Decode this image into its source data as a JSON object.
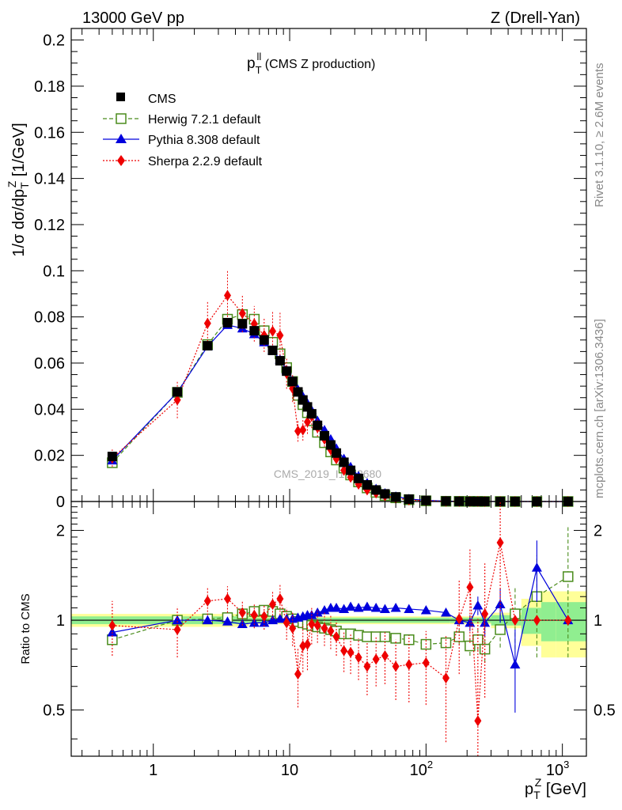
{
  "header": {
    "left": "13000 GeV pp",
    "right": "Z (Drell-Yan)"
  },
  "side_labels": {
    "rivet": "Rivet 3.1.10, ≥ 2.6M events",
    "mcplots": "mcplots.cern.ch [arXiv:1306.3436]"
  },
  "watermark": "CMS_2019_I1753680",
  "colors": {
    "cms": "#000000",
    "herwig": "#4a8c1c",
    "pythia": "#0000dd",
    "sherpa": "#ee0000",
    "band_inner": "#90ee90",
    "band_outer": "#ffff99"
  },
  "chart_data": [
    {
      "type": "scatter",
      "title_main": "p",
      "title_sup": "ll",
      "title_sub": "T",
      "title_rest": " (CMS Z production)",
      "ylabel_parts": {
        "pre": "1/σ dσ/dp",
        "sub": "T",
        "sup": "Z",
        "post": " [1/GeV]"
      },
      "x_scale": "log",
      "xlim": [
        0.25,
        1500
      ],
      "ylim": [
        0,
        0.205
      ],
      "yticks": [
        "0",
        "0.02",
        "0.04",
        "0.06",
        "0.08",
        "0.1",
        "0.12",
        "0.14",
        "0.16",
        "0.18",
        "0.2"
      ],
      "legend": [
        "CMS",
        "Herwig 7.2.1 default",
        "Pythia 8.308 default",
        "Sherpa 2.2.9 default"
      ],
      "legend_position": "top-left",
      "x": [
        0.5,
        1.5,
        2.5,
        3.5,
        4.5,
        5.5,
        6.5,
        7.5,
        8.5,
        9.5,
        10.5,
        11.5,
        12.5,
        13.5,
        14.5,
        16,
        18,
        20,
        22,
        25,
        28,
        32,
        37,
        43,
        50,
        60,
        75,
        100,
        140,
        175,
        210,
        240,
        270,
        350,
        450,
        650,
        1100
      ],
      "series": [
        {
          "name": "CMS",
          "values": [
            0.0195,
            0.0475,
            0.0675,
            0.0775,
            0.077,
            0.074,
            0.07,
            0.0655,
            0.061,
            0.0565,
            0.052,
            0.0475,
            0.044,
            0.041,
            0.038,
            0.033,
            0.0285,
            0.0245,
            0.021,
            0.017,
            0.0135,
            0.01,
            0.0072,
            0.005,
            0.0033,
            0.002,
            0.001,
            0.00045,
            0.00018,
            9e-05,
            6e-05,
            4e-05,
            3e-05,
            1e-05,
            6e-06,
            2e-06,
            5e-07
          ]
        },
        {
          "name": "Herwig 7.2.1 default",
          "values": [
            0.0168,
            0.0473,
            0.068,
            0.079,
            0.081,
            0.079,
            0.074,
            0.069,
            0.064,
            0.058,
            0.052,
            0.046,
            0.042,
            0.0385,
            0.035,
            0.03,
            0.0255,
            0.0215,
            0.018,
            0.0145,
            0.0115,
            0.0085,
            0.0059,
            0.004,
            0.0026,
            0.0016,
            0.0008,
            0.0003,
            0.0001,
            7e-05,
            5e-05,
            4e-05,
            3e-05,
            1e-05,
            6e-06,
            2e-06,
            5e-07
          ]
        },
        {
          "name": "Pythia 8.308 default",
          "values": [
            0.0178,
            0.0473,
            0.0672,
            0.0765,
            0.075,
            0.0725,
            0.069,
            0.0655,
            0.0615,
            0.057,
            0.0525,
            0.0485,
            0.0455,
            0.0425,
            0.0395,
            0.035,
            0.031,
            0.027,
            0.023,
            0.0185,
            0.015,
            0.011,
            0.008,
            0.0055,
            0.0036,
            0.0022,
            0.0011,
            0.0005,
            0.0002,
            0.0001,
            6e-05,
            4e-05,
            3e-05,
            1e-05,
            6e-06,
            2e-06,
            5e-07
          ]
        },
        {
          "name": "Sherpa 2.2.9 default",
          "values": [
            0.0188,
            0.044,
            0.0772,
            0.0893,
            0.0815,
            0.077,
            0.072,
            0.0738,
            0.072,
            0.0555,
            0.049,
            0.0305,
            0.031,
            0.0345,
            0.037,
            0.032,
            0.027,
            0.0225,
            0.0185,
            0.0135,
            0.0105,
            0.0075,
            0.005,
            0.0037,
            0.0025,
            0.0014,
            0.0007,
            0.0003,
            0.0001,
            6e-05,
            4e-05,
            3e-05,
            2e-05,
            1e-05,
            5e-06,
            2e-06,
            5e-07
          ]
        }
      ]
    },
    {
      "type": "scatter",
      "ylabel": "Ratio to CMS",
      "xlabel_parts": {
        "pre": "p",
        "sub": "T",
        "sup": "Z",
        "post": " [GeV]"
      },
      "x_scale": "log",
      "y_scale": "log",
      "xlim": [
        0.25,
        1500
      ],
      "ylim": [
        0.35,
        2.5
      ],
      "xticks": [
        {
          "value": 1,
          "base": "1",
          "exp": ""
        },
        {
          "value": 10,
          "base": "10",
          "exp": ""
        },
        {
          "value": 100,
          "base": "10",
          "exp": "2"
        },
        {
          "value": 1000,
          "base": "10",
          "exp": "3"
        }
      ],
      "yticks": [
        "0.5",
        "1",
        "2"
      ],
      "reference_line": 1,
      "x": [
        0.5,
        1.5,
        2.5,
        3.5,
        4.5,
        5.5,
        6.5,
        7.5,
        8.5,
        9.5,
        10.5,
        11.5,
        12.5,
        13.5,
        14.5,
        16,
        18,
        20,
        22,
        25,
        28,
        32,
        37,
        43,
        50,
        60,
        75,
        100,
        140,
        175,
        210,
        240,
        270,
        350,
        450,
        650,
        1100
      ],
      "band": {
        "x_edges": [
          0.25,
          5,
          10,
          20,
          50,
          150,
          300,
          500,
          700,
          900,
          1500
        ],
        "inner": [
          0.03,
          0.02,
          0.02,
          0.02,
          0.02,
          0.02,
          0.04,
          0.1,
          0.15,
          0.15
        ],
        "outer": [
          0.05,
          0.03,
          0.03,
          0.03,
          0.03,
          0.03,
          0.06,
          0.18,
          0.25,
          0.25
        ]
      },
      "series": [
        {
          "name": "Herwig 7.2.1 default",
          "values": [
            0.86,
            1.0,
            1.01,
            1.02,
            1.05,
            1.07,
            1.08,
            1.07,
            1.05,
            1.03,
            1.01,
            0.99,
            0.98,
            0.97,
            0.96,
            0.95,
            0.94,
            0.93,
            0.92,
            0.9,
            0.9,
            0.89,
            0.88,
            0.88,
            0.88,
            0.87,
            0.86,
            0.83,
            0.84,
            0.88,
            0.82,
            0.86,
            0.8,
            0.93,
            1.05,
            1.2,
            1.4
          ],
          "err": [
            0.02,
            0.01,
            0.01,
            0.01,
            0.01,
            0.01,
            0.01,
            0.01,
            0.01,
            0.01,
            0.01,
            0.01,
            0.01,
            0.01,
            0.01,
            0.01,
            0.01,
            0.01,
            0.01,
            0.01,
            0.01,
            0.01,
            0.01,
            0.01,
            0.01,
            0.01,
            0.01,
            0.02,
            0.03,
            0.05,
            0.06,
            0.07,
            0.08,
            0.12,
            0.25,
            0.45,
            0.65
          ]
        },
        {
          "name": "Pythia 8.308 default",
          "values": [
            0.91,
            1.0,
            1.0,
            0.99,
            0.97,
            0.98,
            0.98,
            1.0,
            1.01,
            1.01,
            1.01,
            1.02,
            1.03,
            1.04,
            1.04,
            1.06,
            1.08,
            1.1,
            1.1,
            1.09,
            1.11,
            1.1,
            1.11,
            1.1,
            1.09,
            1.1,
            1.09,
            1.08,
            1.06,
            1.0,
            0.98,
            1.12,
            0.98,
            1.13,
            0.71,
            1.5,
            1.0
          ],
          "err": [
            0.02,
            0.01,
            0.01,
            0.01,
            0.01,
            0.01,
            0.01,
            0.01,
            0.01,
            0.01,
            0.01,
            0.01,
            0.01,
            0.01,
            0.01,
            0.01,
            0.01,
            0.01,
            0.01,
            0.01,
            0.01,
            0.01,
            0.01,
            0.01,
            0.01,
            0.01,
            0.01,
            0.02,
            0.03,
            0.04,
            0.06,
            0.08,
            0.1,
            0.15,
            0.22,
            0.35,
            0.0
          ]
        },
        {
          "name": "Sherpa 2.2.9 default",
          "values": [
            0.96,
            0.93,
            1.16,
            1.18,
            1.06,
            1.04,
            1.03,
            1.13,
            1.18,
            0.98,
            0.94,
            0.66,
            0.82,
            0.83,
            0.97,
            0.96,
            0.94,
            0.92,
            0.88,
            0.79,
            0.78,
            0.75,
            0.7,
            0.74,
            0.76,
            0.7,
            0.71,
            0.72,
            0.64,
            1.01,
            1.29,
            0.46,
            1.05,
            1.82,
            1.0,
            1.0,
            1.0
          ],
          "err": [
            0.2,
            0.18,
            0.12,
            0.12,
            0.1,
            0.1,
            0.1,
            0.12,
            0.14,
            0.12,
            0.12,
            0.15,
            0.15,
            0.15,
            0.14,
            0.12,
            0.12,
            0.12,
            0.12,
            0.12,
            0.12,
            0.12,
            0.14,
            0.14,
            0.15,
            0.16,
            0.18,
            0.2,
            0.25,
            0.35,
            0.45,
            0.55,
            0.5,
            0.75,
            0.0,
            0.0,
            0.0
          ]
        }
      ]
    }
  ]
}
